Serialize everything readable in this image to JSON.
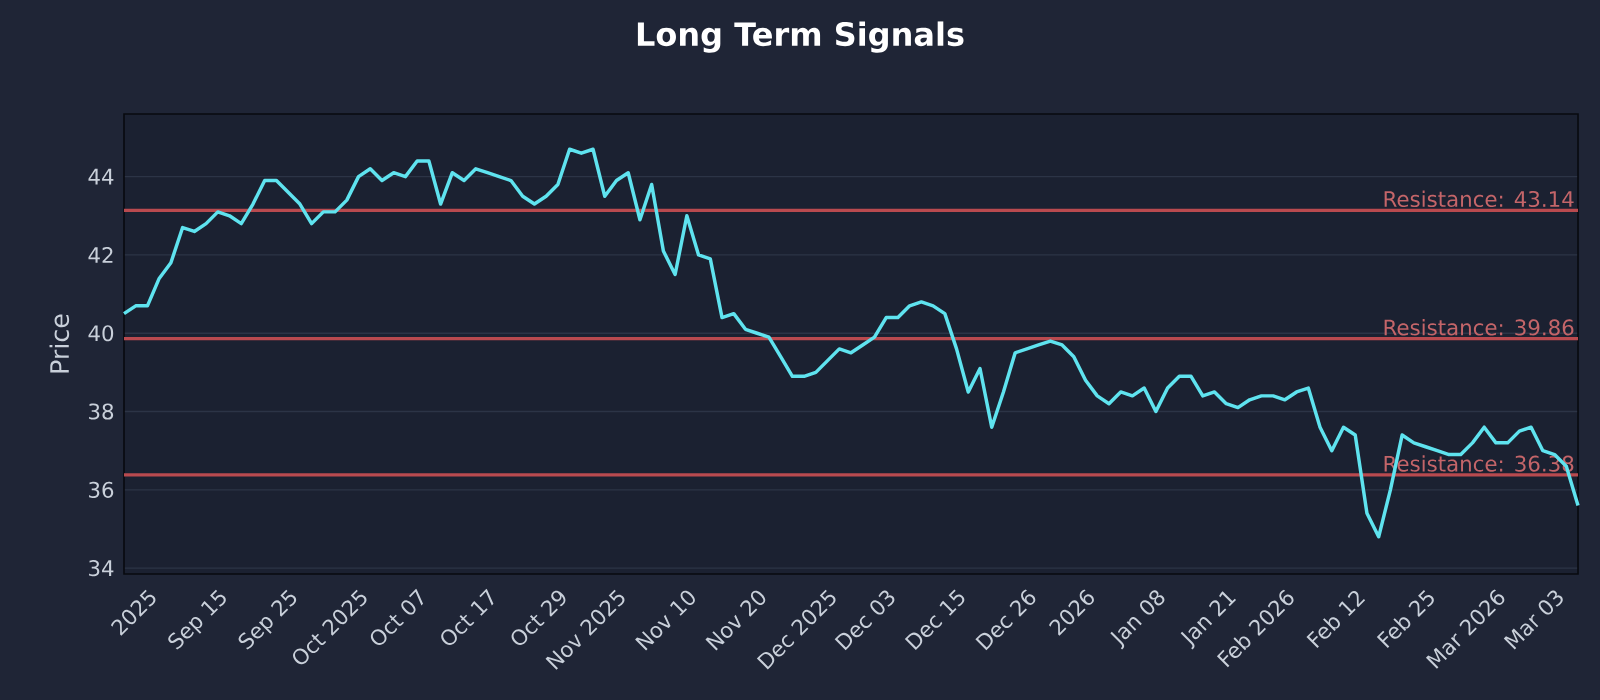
{
  "chart_data": {
    "type": "line",
    "title": "Long Term Signals",
    "ylabel": "Price",
    "categories": [
      null,
      null,
      "2025",
      null,
      null,
      null,
      null,
      null,
      "Sep 15",
      null,
      null,
      null,
      null,
      null,
      "Sep 25",
      null,
      null,
      null,
      null,
      null,
      "Oct 2025",
      null,
      null,
      null,
      null,
      "Oct 07",
      null,
      null,
      null,
      null,
      null,
      "Oct 17",
      null,
      null,
      null,
      null,
      null,
      "Oct 29",
      null,
      null,
      null,
      null,
      "Nov 2025",
      null,
      null,
      null,
      null,
      null,
      "Nov 10",
      null,
      null,
      null,
      null,
      null,
      "Nov 20",
      null,
      null,
      null,
      null,
      null,
      "Dec 2025",
      null,
      null,
      null,
      null,
      "Dec 03",
      null,
      null,
      null,
      null,
      null,
      "Dec 15",
      null,
      null,
      null,
      null,
      null,
      "Dec 26",
      null,
      null,
      null,
      null,
      "2026",
      null,
      null,
      null,
      null,
      null,
      "Jan 08",
      null,
      null,
      null,
      null,
      null,
      "Jan 21",
      null,
      null,
      null,
      null,
      "Feb 2026",
      null,
      null,
      null,
      null,
      null,
      "Feb 12",
      null,
      null,
      null,
      null,
      null,
      "Feb 25",
      null,
      null,
      null,
      null,
      null,
      "Mar 2026",
      null,
      null,
      null,
      null,
      "Mar 03",
      null,
      null
    ],
    "series": [
      {
        "color": "#5fe3ef",
        "values": [
          40.5,
          40.7,
          40.7,
          41.4,
          41.8,
          42.7,
          42.6,
          42.8,
          43.1,
          43.0,
          42.8,
          43.3,
          43.9,
          43.9,
          43.6,
          43.3,
          42.8,
          43.1,
          43.1,
          43.4,
          44.0,
          44.2,
          43.9,
          44.1,
          44.0,
          44.4,
          44.4,
          43.3,
          44.1,
          43.9,
          44.2,
          44.1,
          44.0,
          43.9,
          43.5,
          43.3,
          43.5,
          43.8,
          44.7,
          44.6,
          44.7,
          43.5,
          43.9,
          44.1,
          42.9,
          43.8,
          42.1,
          41.5,
          43.0,
          42.0,
          41.9,
          40.4,
          40.5,
          40.1,
          40.0,
          39.9,
          39.4,
          38.9,
          38.9,
          39.0,
          39.3,
          39.6,
          39.5,
          39.7,
          39.9,
          40.4,
          40.4,
          40.7,
          40.8,
          40.7,
          40.5,
          39.6,
          38.5,
          39.1,
          37.6,
          38.5,
          39.5,
          39.6,
          39.7,
          39.8,
          39.7,
          39.4,
          38.8,
          38.4,
          38.2,
          38.5,
          38.4,
          38.6,
          38.0,
          38.6,
          38.9,
          38.9,
          38.4,
          38.5,
          38.2,
          38.1,
          38.3,
          38.4,
          38.4,
          38.3,
          38.5,
          38.6,
          37.6,
          37.0,
          37.6,
          37.4,
          35.4,
          34.8,
          36.0,
          37.4,
          37.2,
          37.1,
          37.0,
          36.9,
          36.9,
          37.2,
          37.6,
          37.2,
          37.2,
          37.5,
          37.6,
          37.0,
          36.9,
          36.6,
          35.6
        ]
      }
    ],
    "ylim": [
      33.85,
      45.6
    ],
    "yticks": [
      34,
      36,
      38,
      40,
      42,
      44
    ],
    "grid": "y",
    "ref_lines": [
      {
        "axis": "y",
        "value": 43.14,
        "label": "Resistance: 43.14",
        "color": "#b94a4f"
      },
      {
        "axis": "y",
        "value": 39.86,
        "label": "Resistance: 39.86",
        "color": "#b94a4f"
      },
      {
        "axis": "y",
        "value": 36.38,
        "label": "Resistance: 36.38",
        "color": "#b94a4f"
      }
    ]
  }
}
